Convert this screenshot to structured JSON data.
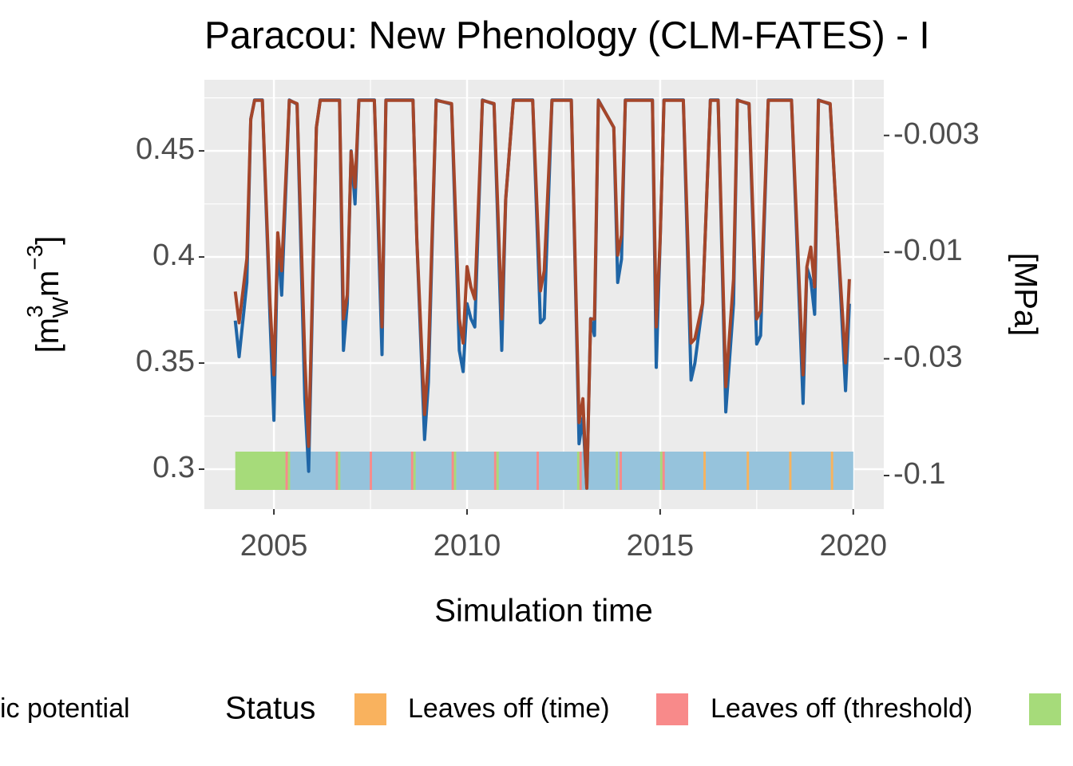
{
  "chart_data": {
    "type": "line",
    "title": "Paracou: New Phenology (CLM-FATES) - I",
    "x_label": "Simulation time",
    "y_label_parts": [
      "[m",
      "3",
      "W",
      "m",
      "−3",
      "]"
    ],
    "y2_label": "[MPa]",
    "xlim": [
      2003.2,
      2020.79
    ],
    "xticks": [
      2005,
      2010,
      2015,
      2020
    ],
    "xminor": [
      2007.5,
      2012.5,
      2017.5
    ],
    "ylim": [
      0.2812,
      0.4835
    ],
    "yticks": [
      0.3,
      0.35,
      0.4,
      0.45
    ],
    "yminor": [
      0.325,
      0.375,
      0.425,
      0.475
    ],
    "y2lim": [
      -0.00169,
      -0.1413
    ],
    "y2ticks": [
      -0.003,
      -0.01,
      -0.03,
      -0.1
    ],
    "y2log": true,
    "grid": true,
    "x": [
      2004.0,
      2004.1,
      2004.3,
      2004.4,
      2004.5,
      2004.7,
      2004.9,
      2005.0,
      2005.1,
      2005.2,
      2005.4,
      2005.6,
      2005.8,
      2005.9,
      2006.1,
      2006.2,
      2006.7,
      2006.8,
      2006.9,
      2007.0,
      2007.1,
      2007.2,
      2007.6,
      2007.8,
      2007.9,
      2008.6,
      2008.7,
      2008.9,
      2009.0,
      2009.2,
      2009.6,
      2009.8,
      2009.9,
      2010.0,
      2010.1,
      2010.2,
      2010.4,
      2010.7,
      2010.9,
      2011.0,
      2011.2,
      2011.7,
      2011.9,
      2012.0,
      2012.2,
      2012.7,
      2012.9,
      2013.0,
      2013.1,
      2013.2,
      2013.3,
      2013.4,
      2013.8,
      2013.9,
      2014.0,
      2014.1,
      2014.8,
      2014.9,
      2015.0,
      2015.1,
      2015.6,
      2015.8,
      2015.9,
      2016.1,
      2016.3,
      2016.5,
      2016.7,
      2016.9,
      2017.0,
      2017.3,
      2017.5,
      2017.6,
      2017.8,
      2018.4,
      2018.7,
      2018.8,
      2018.9,
      2019.0,
      2019.1,
      2019.4,
      2019.6,
      2019.8,
      2019.9
    ],
    "series": [
      {
        "color": "#1f65a6",
        "values": [
          0.37,
          0.353,
          0.388,
          0.465,
          0.474,
          0.474,
          0.371,
          0.323,
          0.408,
          0.382,
          0.474,
          0.472,
          0.333,
          0.299,
          0.461,
          0.474,
          0.474,
          0.356,
          0.378,
          0.45,
          0.425,
          0.474,
          0.474,
          0.354,
          0.474,
          0.474,
          0.408,
          0.314,
          0.341,
          0.474,
          0.472,
          0.356,
          0.346,
          0.378,
          0.371,
          0.367,
          0.474,
          0.472,
          0.356,
          0.427,
          0.474,
          0.474,
          0.369,
          0.371,
          0.474,
          0.474,
          0.312,
          0.324,
          0.292,
          0.371,
          0.363,
          0.474,
          0.461,
          0.388,
          0.399,
          0.474,
          0.474,
          0.348,
          0.408,
          0.474,
          0.474,
          0.342,
          0.35,
          0.378,
          0.474,
          0.474,
          0.327,
          0.378,
          0.474,
          0.472,
          0.359,
          0.363,
          0.474,
          0.474,
          0.331,
          0.395,
          0.389,
          0.373,
          0.474,
          0.472,
          0.408,
          0.337,
          0.378
        ]
      },
      {
        "color": "#a5462a",
        "axis": "y2",
        "values": [
          -0.015,
          -0.0207,
          -0.0107,
          -0.00254,
          -0.00209,
          -0.00209,
          -0.0169,
          -0.0354,
          -0.00818,
          -0.0121,
          -0.00209,
          -0.00216,
          -0.03,
          -0.0741,
          -0.00276,
          -0.00209,
          -0.00209,
          -0.0199,
          -0.0155,
          -0.00354,
          -0.00512,
          -0.00209,
          -0.00209,
          -0.0216,
          -0.00209,
          -0.00209,
          -0.00874,
          -0.0533,
          -0.03,
          -0.00209,
          -0.00216,
          -0.0199,
          -0.0255,
          -0.0116,
          -0.0143,
          -0.0162,
          -0.00209,
          -0.00216,
          -0.0199,
          -0.00579,
          -0.00209,
          -0.00209,
          -0.0149,
          -0.0121,
          -0.00209,
          -0.00209,
          -0.0579,
          -0.0453,
          -0.114,
          -0.0199,
          -0.0199,
          -0.00209,
          -0.00276,
          -0.0103,
          -0.00838,
          -0.00209,
          -0.00209,
          -0.0216,
          -0.00874,
          -0.00209,
          -0.00209,
          -0.0255,
          -0.0244,
          -0.0169,
          -0.00209,
          -0.00209,
          -0.04,
          -0.0132,
          -0.00209,
          -0.00216,
          -0.0199,
          -0.0183,
          -0.00209,
          -0.00209,
          -0.0354,
          -0.0116,
          -0.00949,
          -0.0143,
          -0.00209,
          -0.00216,
          -0.00874,
          -0.0313,
          -0.0132
        ]
      }
    ],
    "status_segments": [
      {
        "start": 2004.0,
        "end": 2005.3,
        "color": "#a6db7a"
      },
      {
        "start": 2005.3,
        "end": 2020.0,
        "color": "#96c3dc"
      },
      {
        "start": 2005.3,
        "end": 2005.36,
        "color": "#f88a8a"
      },
      {
        "start": 2005.36,
        "end": 2005.42,
        "color": "#a6db7a"
      },
      {
        "start": 2006.6,
        "end": 2006.66,
        "color": "#f88a8a"
      },
      {
        "start": 2006.66,
        "end": 2006.72,
        "color": "#a6db7a"
      },
      {
        "start": 2007.48,
        "end": 2007.54,
        "color": "#f88a8a"
      },
      {
        "start": 2008.55,
        "end": 2008.61,
        "color": "#f88a8a"
      },
      {
        "start": 2008.61,
        "end": 2008.67,
        "color": "#a6db7a"
      },
      {
        "start": 2009.6,
        "end": 2009.66,
        "color": "#f88a8a"
      },
      {
        "start": 2009.66,
        "end": 2009.72,
        "color": "#a6db7a"
      },
      {
        "start": 2010.7,
        "end": 2010.76,
        "color": "#f88a8a"
      },
      {
        "start": 2010.76,
        "end": 2010.82,
        "color": "#a6db7a"
      },
      {
        "start": 2011.8,
        "end": 2011.86,
        "color": "#f88a8a"
      },
      {
        "start": 2012.85,
        "end": 2012.91,
        "color": "#a6db7a"
      },
      {
        "start": 2012.91,
        "end": 2012.97,
        "color": "#f88a8a"
      },
      {
        "start": 2013.85,
        "end": 2013.91,
        "color": "#a6db7a"
      },
      {
        "start": 2013.95,
        "end": 2014.01,
        "color": "#f88a8a"
      },
      {
        "start": 2015.0,
        "end": 2015.06,
        "color": "#a6db7a"
      },
      {
        "start": 2015.06,
        "end": 2015.12,
        "color": "#f88a8a"
      },
      {
        "start": 2016.12,
        "end": 2016.18,
        "color": "#f7b35e"
      },
      {
        "start": 2017.24,
        "end": 2017.3,
        "color": "#f7b35e"
      },
      {
        "start": 2018.34,
        "end": 2018.4,
        "color": "#f7b35e"
      },
      {
        "start": 2019.42,
        "end": 2019.48,
        "color": "#f7b35e"
      }
    ],
    "line_legend_fragment": "ic potential",
    "legend": {
      "title": "Status",
      "items": [
        {
          "label": "Leaves off (time)",
          "color": "#f9b25e"
        },
        {
          "label": "Leaves off (threshold)",
          "color": "#f88a8a"
        },
        {
          "color": "#a6db7a"
        }
      ]
    }
  }
}
